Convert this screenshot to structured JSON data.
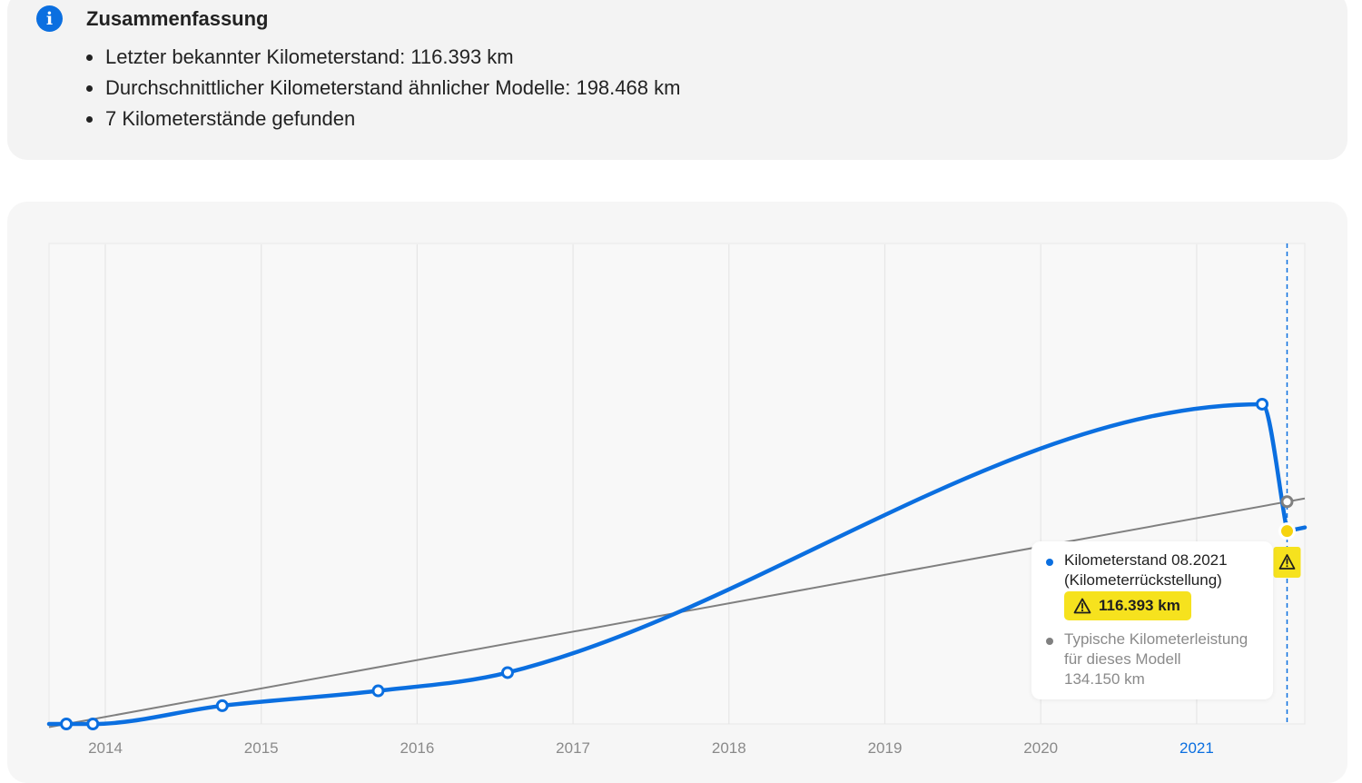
{
  "summary": {
    "title": "Zusammenfassung",
    "items": [
      "Letzter bekannter Kilometerstand: 116.393 km",
      "Durchschnittlicher Kilometerstand ähnlicher Modelle: 198.468 km",
      "7 Kilometerstände gefunden"
    ],
    "icon": "info-icon",
    "accent_color": "#0b6fe0"
  },
  "tooltip": {
    "line1": "Kilometerstand 08.2021",
    "line2": "(Kilometerrückstellung)",
    "badge_value": "116.393 km",
    "typical_line1": "Typische Kilometerleistung",
    "typical_line2": "für dieses Modell",
    "typical_value": "134.150 km",
    "warning_color": "#f6e21e"
  },
  "chart_data": {
    "type": "line",
    "x_tick_labels": [
      "2014",
      "2015",
      "2016",
      "2017",
      "2018",
      "2019",
      "2020",
      "2021"
    ],
    "highlighted_tick": "2021",
    "series": [
      {
        "name": "Kilometerstand",
        "color": "#0b6fe0",
        "points": [
          {
            "x": 2013.75,
            "y": 0
          },
          {
            "x": 2013.92,
            "y": 0
          },
          {
            "x": 2014.75,
            "y": 11000
          },
          {
            "x": 2015.75,
            "y": 20000
          },
          {
            "x": 2016.58,
            "y": 31000
          },
          {
            "x": 2021.42,
            "y": 193000
          },
          {
            "x": 2021.58,
            "y": 116393
          }
        ]
      },
      {
        "name": "Typische Kilometerleistung",
        "color": "#808080",
        "points": [
          {
            "x": 2013.75,
            "y": 0
          },
          {
            "x": 2021.58,
            "y": 134150
          }
        ]
      }
    ],
    "highlight_x": 2021.58,
    "ylim": [
      0,
      290000
    ]
  }
}
